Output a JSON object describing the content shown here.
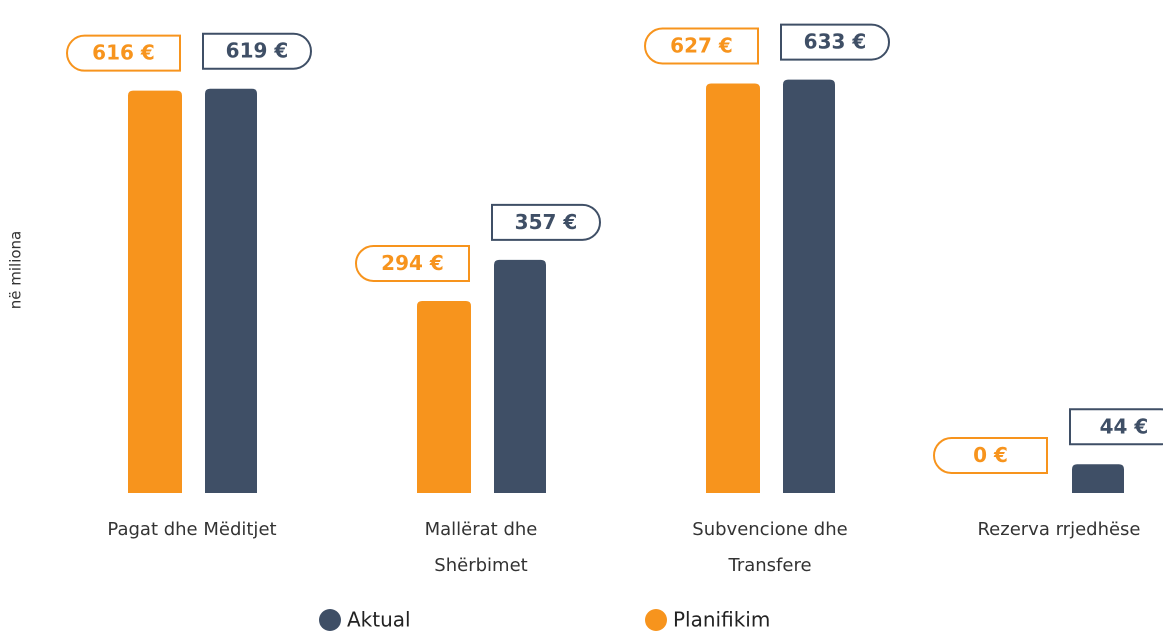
{
  "chart_data": {
    "type": "bar",
    "y_label": "në miliona",
    "categories": [
      "Pagat dhe Mëditjet",
      "Mallërat dhe Shërbimet",
      "Subvencione dhe Transfere",
      "Rezerva rrjedhëse"
    ],
    "series": [
      {
        "name": "Planifikim",
        "color": "#f7941d",
        "values": [
          616,
          294,
          627,
          0
        ],
        "value_labels": [
          "616 €",
          "294 €",
          "627 €",
          "0 €"
        ]
      },
      {
        "name": "Aktual",
        "color": "#3f4f66",
        "values": [
          619,
          357,
          633,
          44
        ],
        "value_labels": [
          "619 €",
          "357 €",
          "633 €",
          "44 €"
        ]
      }
    ],
    "ylim": [
      0,
      640
    ]
  }
}
